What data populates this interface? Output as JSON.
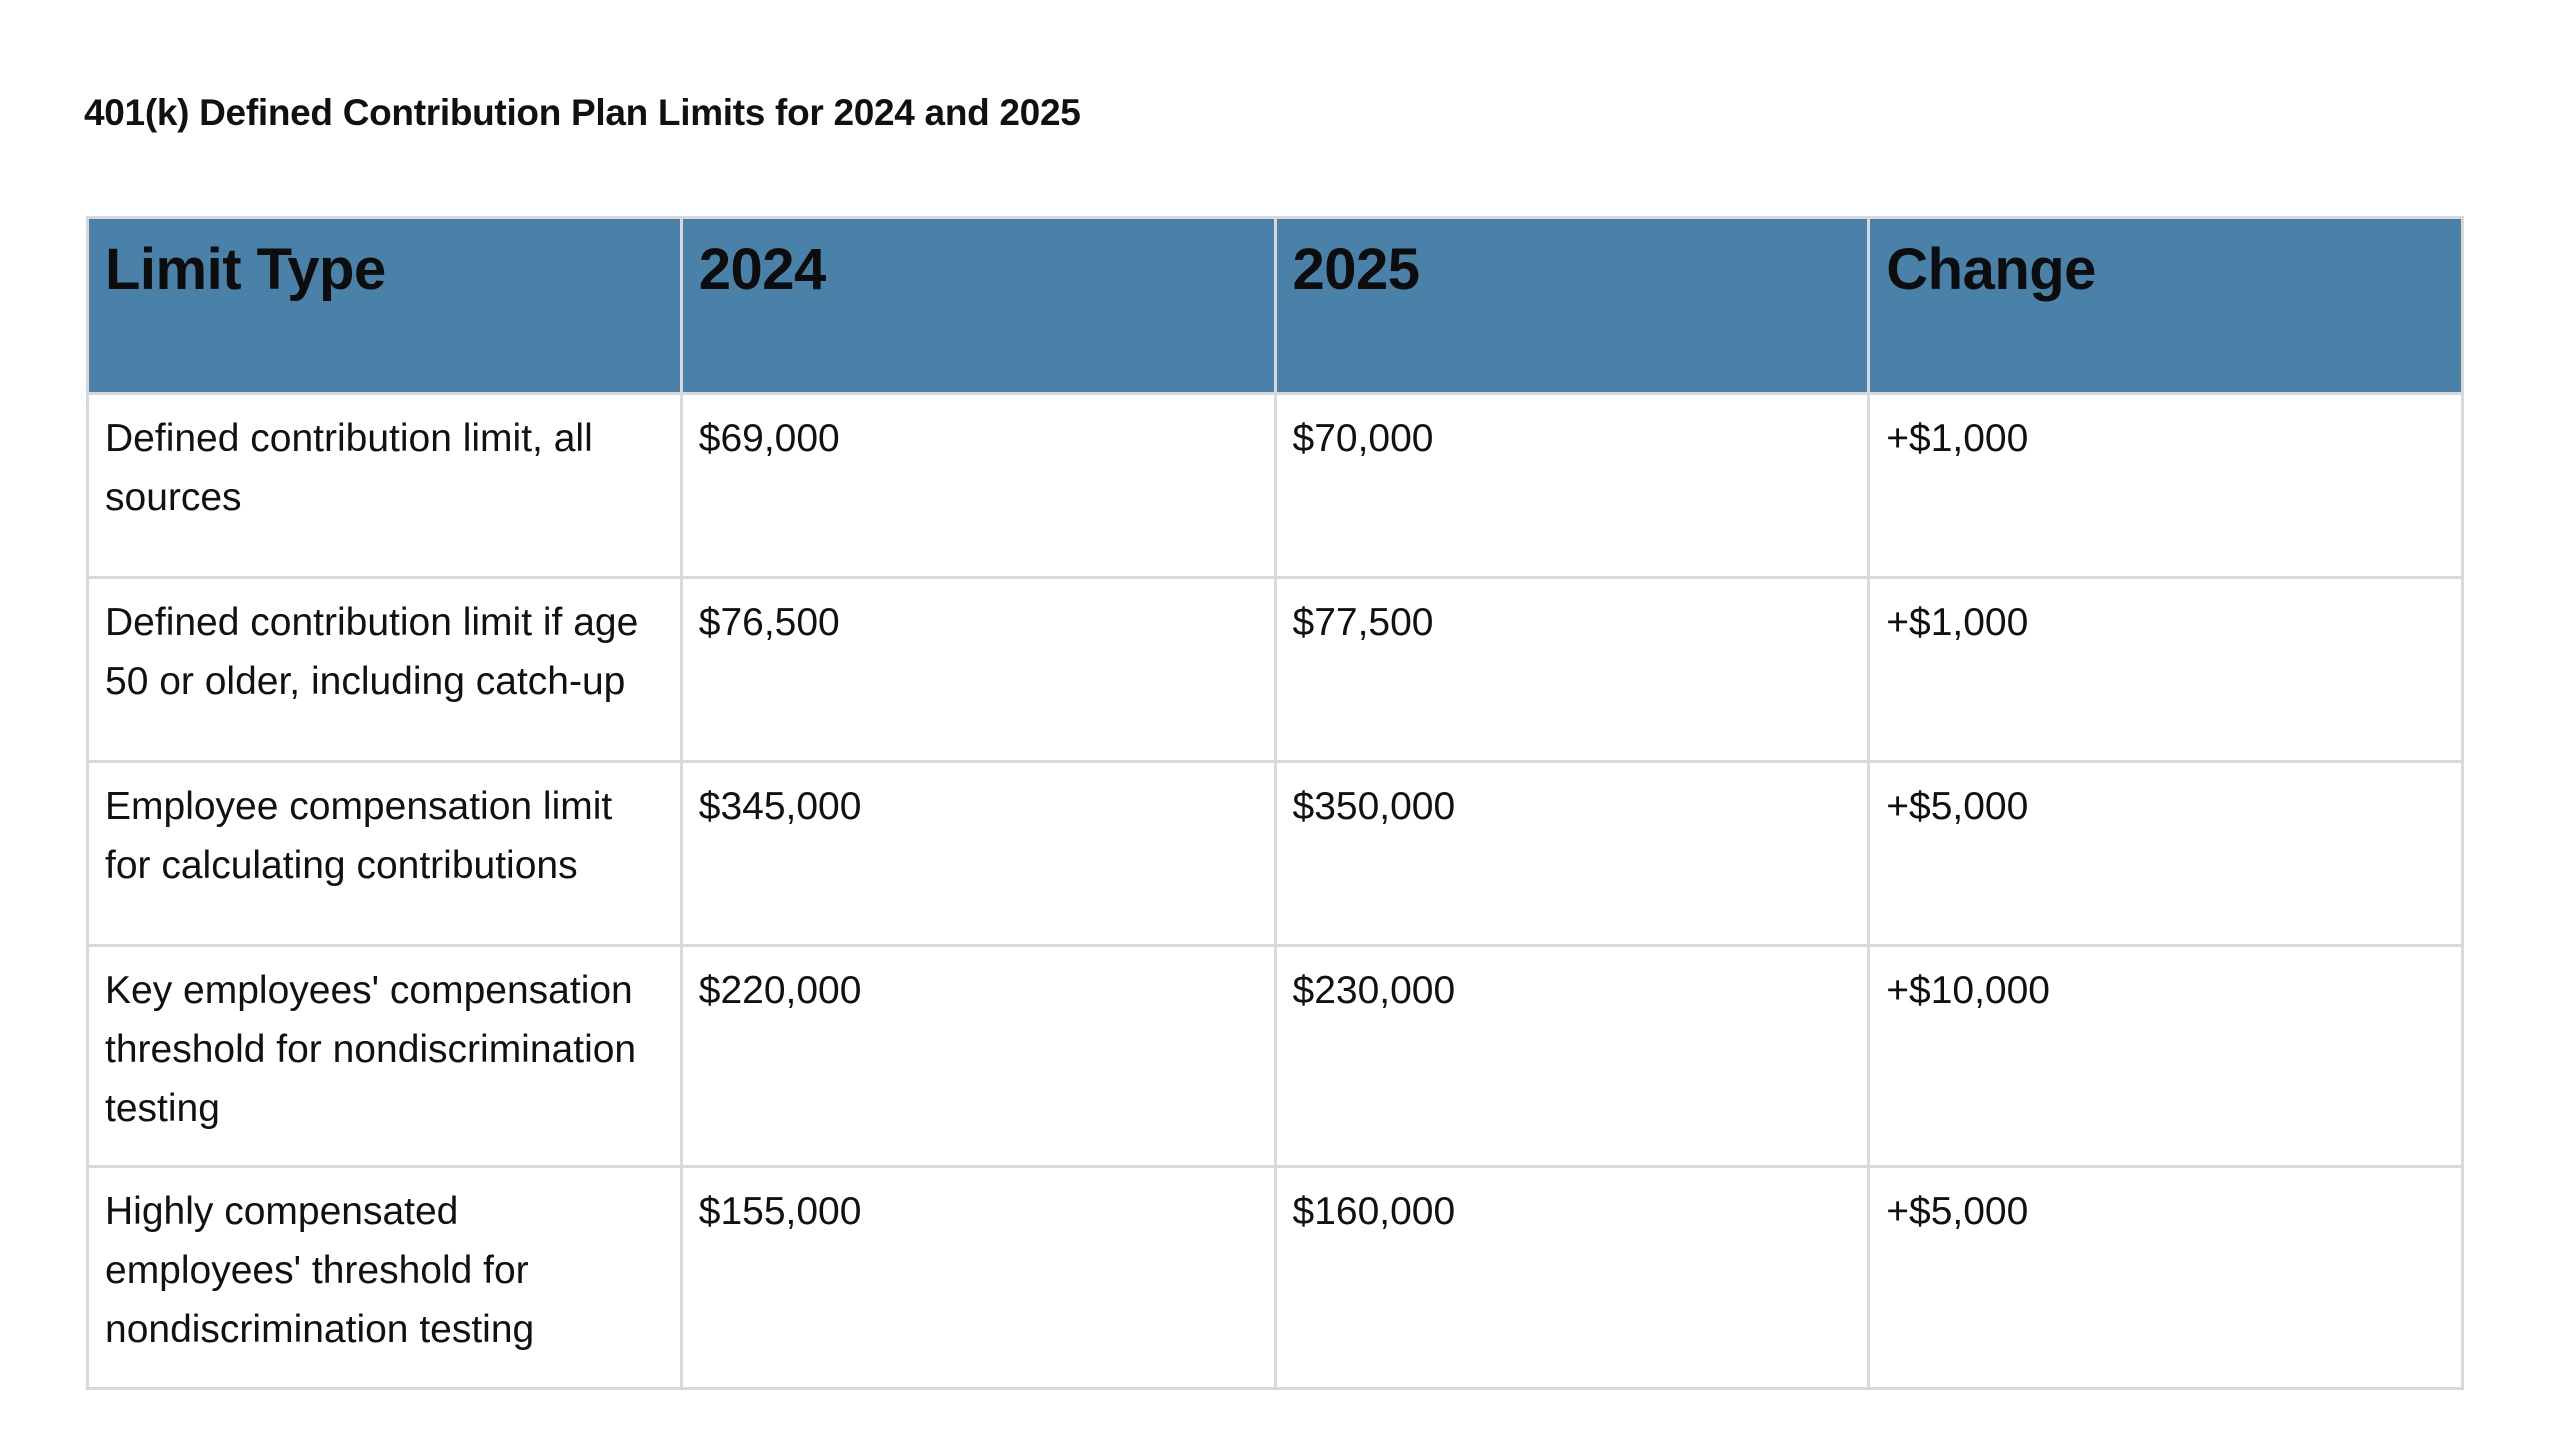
{
  "document": {
    "title": "401(k) Defined Contribution Plan Limits for 2024 and 2025"
  },
  "table": {
    "headers": [
      "Limit Type",
      "2024",
      "2025",
      "Change"
    ],
    "rows": [
      [
        "Defined contribution limit, all sources",
        "$69,000",
        "$70,000",
        "+$1,000"
      ],
      [
        "Defined contribution limit if age 50 or older, including catch-up",
        "$76,500",
        "$77,500",
        "+$1,000"
      ],
      [
        "Employee compensation limit for calculating contributions",
        "$345,000",
        "$350,000",
        "+$5,000"
      ],
      [
        "Key employees' compensation threshold for nondiscrimination testing",
        "$220,000",
        "$230,000",
        "+$10,000"
      ],
      [
        "Highly compensated employees' threshold for nondiscrimination testing",
        "$155,000",
        "$160,000",
        "+$5,000"
      ]
    ]
  },
  "colors": {
    "header_background": "#4a81a8",
    "grid_line": "#d9d9d9"
  }
}
